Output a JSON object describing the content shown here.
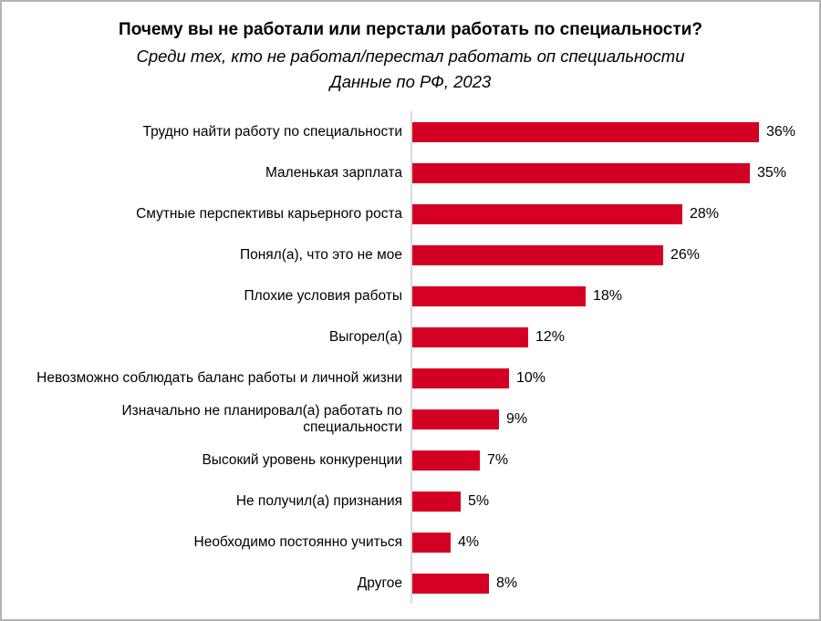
{
  "header": {
    "title": "Почему вы не работали или перстали работать по специальности?",
    "subtitle": "Среди тех, кто не работал/перестал работать оп специальности",
    "subtitle2": "Данные по РФ, 2023"
  },
  "chart_data": {
    "type": "bar",
    "orientation": "horizontal",
    "title": "Почему вы не работали или перстали работать по специальности?",
    "subtitle": "Среди тех, кто не работал/перестал работать оп специальности",
    "note": "Данные по РФ, 2023",
    "categories": [
      "Трудно найти работу по специальности",
      "Маленькая зарплата",
      "Смутные перспективы карьерного роста",
      "Понял(а), что это не мое",
      "Плохие условия работы",
      "Выгорел(а)",
      "Невозможно соблюдать баланс работы и личной жизни",
      "Изначально не планировал(а) работать по\nспециальности",
      "Высокий уровень конкуренции",
      "Не получил(а) признания",
      "Необходимо постоянно учиться",
      "Другое"
    ],
    "values": [
      36,
      35,
      28,
      26,
      18,
      12,
      10,
      9,
      7,
      5,
      4,
      8
    ],
    "data_labels": [
      "36%",
      "35%",
      "28%",
      "26%",
      "18%",
      "12%",
      "10%",
      "9%",
      "7%",
      "5%",
      "4%",
      "8%"
    ],
    "value_suffix": "%",
    "xlim": [
      0,
      38
    ],
    "grid": false,
    "legend": "none",
    "bar_color": "#d40023",
    "axis_line_color": "#d9d9d9",
    "text_color": "#000000"
  }
}
